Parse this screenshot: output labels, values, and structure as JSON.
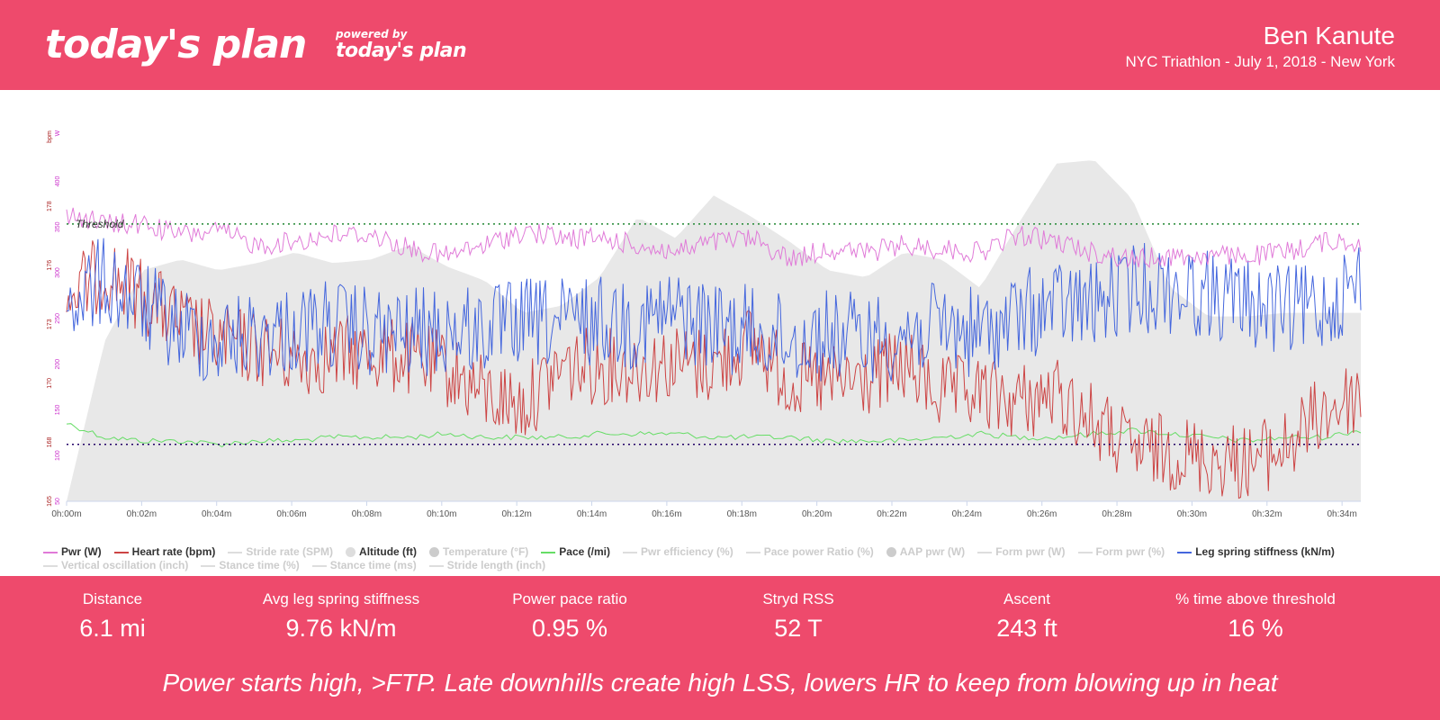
{
  "header": {
    "logo": "today's plan",
    "powered_by": "powered by",
    "logo_small": "today's plan",
    "athlete": "Ben Kanute",
    "event": "NYC Triathlon - July 1, 2018 - New York"
  },
  "colors": {
    "brand": "#ee4a6c",
    "power": "#e07ad8",
    "heart_rate": "#cc4444",
    "pace": "#66dd66",
    "leg_spring": "#4466dd",
    "altitude": "#e8e8e8",
    "threshold": "#228833",
    "lower_line": "#220066"
  },
  "chart_data": {
    "type": "line",
    "x_axis": {
      "min_minutes": 0,
      "max_minutes": 34.5,
      "ticks": [
        "0h:00m",
        "0h:02m",
        "0h:04m",
        "0h:06m",
        "0h:08m",
        "0h:10m",
        "0h:12m",
        "0h:14m",
        "0h:16m",
        "0h:18m",
        "0h:20m",
        "0h:22m",
        "0h:24m",
        "0h:26m",
        "0h:28m",
        "0h:30m",
        "0h:32m",
        "0h:34m"
      ]
    },
    "axis_units": {
      "power": "W",
      "heart_rate": "bpm"
    },
    "power_axis": {
      "ticks": [
        "50",
        "100",
        "150",
        "200",
        "250",
        "300",
        "350",
        "400"
      ]
    },
    "hr_axis": {
      "ticks": [
        "165",
        "168",
        "170",
        "173",
        "176",
        "178"
      ]
    },
    "threshold_label": "Threshold",
    "threshold_fraction": 0.22,
    "lower_line_fraction": 0.84,
    "series_profiles": {
      "power": {
        "base": [
          0.19,
          0.22,
          0.22,
          0.25,
          0.24,
          0.28,
          0.27,
          0.25,
          0.25,
          0.29,
          0.31,
          0.28,
          0.24,
          0.26,
          0.26,
          0.28,
          0.3,
          0.27,
          0.26,
          0.32,
          0.29,
          0.3,
          0.28,
          0.29,
          0.3,
          0.25,
          0.27,
          0.3,
          0.32,
          0.31,
          0.31,
          0.31,
          0.3,
          0.27,
          0.27
        ],
        "noise": 0.03
      },
      "heart_rate": {
        "base": [
          0.43,
          0.35,
          0.42,
          0.5,
          0.55,
          0.57,
          0.6,
          0.59,
          0.58,
          0.6,
          0.63,
          0.7,
          0.73,
          0.62,
          0.62,
          0.62,
          0.61,
          0.62,
          0.55,
          0.66,
          0.67,
          0.66,
          0.62,
          0.7,
          0.7,
          0.72,
          0.7,
          0.78,
          0.86,
          0.86,
          0.88,
          0.89,
          0.85,
          0.75,
          0.7
        ],
        "noise": 0.11
      },
      "leg_spring": {
        "base": [
          0.45,
          0.38,
          0.45,
          0.52,
          0.55,
          0.53,
          0.52,
          0.5,
          0.53,
          0.53,
          0.52,
          0.52,
          0.5,
          0.5,
          0.49,
          0.5,
          0.47,
          0.51,
          0.52,
          0.55,
          0.53,
          0.54,
          0.53,
          0.51,
          0.53,
          0.48,
          0.45,
          0.45,
          0.4,
          0.4,
          0.42,
          0.44,
          0.47,
          0.45,
          0.38
        ],
        "noise": 0.13
      },
      "pace": {
        "base": [
          0.78,
          0.82,
          0.83,
          0.83,
          0.84,
          0.83,
          0.83,
          0.82,
          0.82,
          0.82,
          0.81,
          0.82,
          0.82,
          0.82,
          0.81,
          0.81,
          0.81,
          0.82,
          0.82,
          0.82,
          0.83,
          0.83,
          0.83,
          0.82,
          0.81,
          0.82,
          0.82,
          0.81,
          0.8,
          0.81,
          0.82,
          0.83,
          0.82,
          0.82,
          0.8
        ],
        "noise": 0.008
      },
      "altitude": {
        "base": [
          1.0,
          0.55,
          0.35,
          0.32,
          0.35,
          0.33,
          0.3,
          0.33,
          0.32,
          0.28,
          0.34,
          0.38,
          0.47,
          0.45,
          0.37,
          0.2,
          0.26,
          0.14,
          0.2,
          0.27,
          0.35,
          0.37,
          0.3,
          0.32,
          0.4,
          0.22,
          0.05,
          0.04,
          0.15,
          0.4,
          0.48,
          0.48,
          0.47,
          0.47,
          0.47
        ],
        "noise": 0
      }
    },
    "legend": [
      {
        "label": "Pwr (W)",
        "on": true,
        "color": "#e07ad8",
        "shape": "line"
      },
      {
        "label": "Heart rate (bpm)",
        "on": true,
        "color": "#cc4444",
        "shape": "line"
      },
      {
        "label": "Stride rate (SPM)",
        "on": false,
        "color": "#dddddd",
        "shape": "line"
      },
      {
        "label": "Altitude (ft)",
        "on": true,
        "color": "#dddddd",
        "shape": "dot"
      },
      {
        "label": "Temperature (°F)",
        "on": false,
        "color": "#cccccc",
        "shape": "dot"
      },
      {
        "label": "Pace (/mi)",
        "on": true,
        "color": "#66dd66",
        "shape": "line"
      },
      {
        "label": "Pwr efficiency (%)",
        "on": false,
        "color": "#dddddd",
        "shape": "line"
      },
      {
        "label": "Pace power Ratio (%)",
        "on": false,
        "color": "#dddddd",
        "shape": "line"
      },
      {
        "label": "AAP pwr (W)",
        "on": false,
        "color": "#cccccc",
        "shape": "dot"
      },
      {
        "label": "Form pwr (W)",
        "on": false,
        "color": "#dddddd",
        "shape": "line"
      },
      {
        "label": "Form pwr (%)",
        "on": false,
        "color": "#dddddd",
        "shape": "line"
      },
      {
        "label": "Leg spring stiffness (kN/m)",
        "on": true,
        "color": "#4466dd",
        "shape": "line"
      },
      {
        "label": "Vertical oscillation (inch)",
        "on": false,
        "color": "#dddddd",
        "shape": "line"
      },
      {
        "label": "Stance time (%)",
        "on": false,
        "color": "#dddddd",
        "shape": "line"
      },
      {
        "label": "Stance time (ms)",
        "on": false,
        "color": "#dddddd",
        "shape": "line"
      },
      {
        "label": "Stride length (inch)",
        "on": false,
        "color": "#dddddd",
        "shape": "line"
      }
    ]
  },
  "stats": [
    {
      "label": "Distance",
      "value": "6.1 mi"
    },
    {
      "label": "Avg leg spring stiffness",
      "value": "9.76 kN/m"
    },
    {
      "label": "Power pace ratio",
      "value": "0.95 %"
    },
    {
      "label": "Stryd RSS",
      "value": "52 T"
    },
    {
      "label": "Ascent",
      "value": "243 ft"
    },
    {
      "label": "% time above threshold",
      "value": "16 %"
    }
  ],
  "comment": "Power starts high, >FTP. Late downhills create high LSS, lowers HR to keep from blowing up in heat"
}
